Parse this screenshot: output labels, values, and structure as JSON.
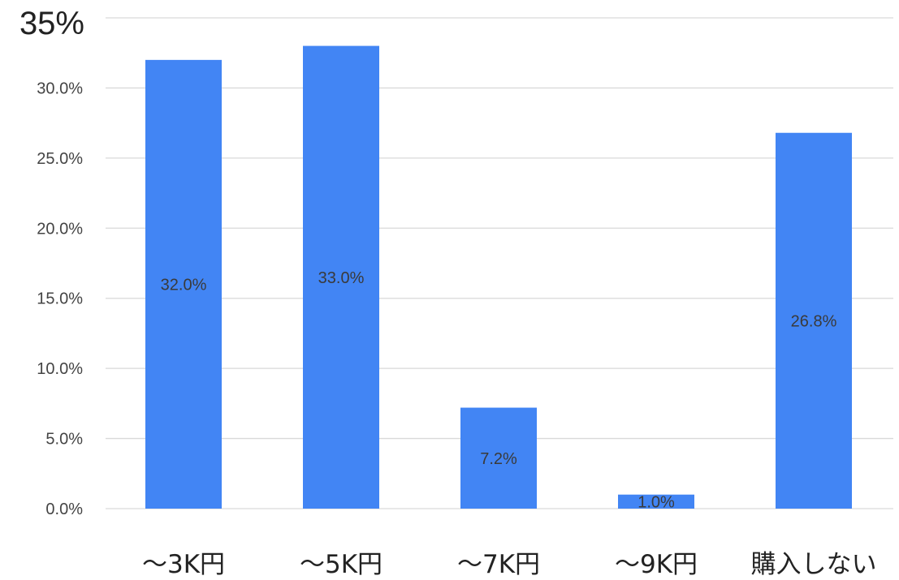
{
  "chart_data": {
    "type": "bar",
    "categories": [
      "～3K円",
      "～5K円",
      "～7K円",
      "～9K円",
      "購入しない"
    ],
    "values": [
      32.0,
      33.0,
      7.2,
      1.0,
      26.8
    ],
    "data_labels": [
      "32.0%",
      "33.0%",
      "7.2%",
      "1.0%",
      "26.8%"
    ],
    "y_ticks": [
      {
        "value": 0,
        "label": "0.0%"
      },
      {
        "value": 5,
        "label": "5.0%"
      },
      {
        "value": 10,
        "label": "10.0%"
      },
      {
        "value": 15,
        "label": "15.0%"
      },
      {
        "value": 20,
        "label": "20.0%"
      },
      {
        "value": 25,
        "label": "25.0%"
      },
      {
        "value": 30,
        "label": "30.0%"
      },
      {
        "value": 35,
        "label": "35%"
      }
    ],
    "ylim": [
      0,
      35
    ],
    "grid": true,
    "legend": "none",
    "bar_color": "#4285f4",
    "grid_color": "#d9d9d9"
  }
}
